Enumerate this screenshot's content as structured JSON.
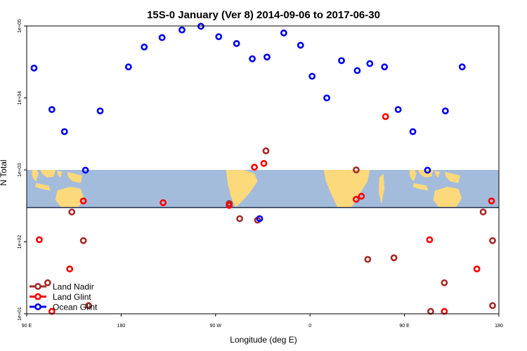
{
  "chart_data": {
    "type": "scatter",
    "title": "15S-0 January (Ver 8)   2014-09-06 to 2017-06-30",
    "xlabel": "Longitude (deg E)",
    "ylabel": "N Total",
    "y_scale": "log",
    "xlim": [
      90,
      540
    ],
    "ylim": [
      10,
      100000
    ],
    "x_ticks": [
      {
        "value": 90,
        "label": "90 E"
      },
      {
        "value": 180,
        "label": "180"
      },
      {
        "value": 270,
        "label": "90 W"
      },
      {
        "value": 360,
        "label": "0"
      },
      {
        "value": 450,
        "label": "90 E"
      },
      {
        "value": 540,
        "label": "180"
      }
    ],
    "y_ticks": [
      {
        "value": 10,
        "label": "1e+01"
      },
      {
        "value": 100,
        "label": "1e+02"
      },
      {
        "value": 1000,
        "label": "1e+03"
      },
      {
        "value": 10000,
        "label": "1e+04"
      },
      {
        "value": 100000,
        "label": "1e+05"
      }
    ],
    "map_band": {
      "lat_range_label": "15S-0",
      "y_range": [
        300,
        1000
      ],
      "ocean_color": "#a4bcdc",
      "land_color": "#fcd97a",
      "border_color": "#1a2a4a"
    },
    "grid": false,
    "legend_position": "bottom-left",
    "series": [
      {
        "name": "Land Nadir",
        "color": "#a52a2a",
        "points": [
          {
            "x": 110,
            "y": 27
          },
          {
            "x": 133,
            "y": 260
          },
          {
            "x": 144,
            "y": 104
          },
          {
            "x": 149,
            "y": 13
          },
          {
            "x": 283,
            "y": 340
          },
          {
            "x": 293,
            "y": 210
          },
          {
            "x": 310,
            "y": 200
          },
          {
            "x": 318,
            "y": 1840
          },
          {
            "x": 404,
            "y": 1000
          },
          {
            "x": 415,
            "y": 57
          },
          {
            "x": 440,
            "y": 60
          },
          {
            "x": 475,
            "y": 10.8
          },
          {
            "x": 488,
            "y": 27
          },
          {
            "x": 525,
            "y": 260
          },
          {
            "x": 540,
            "y": 104
          },
          {
            "x": 548,
            "y": 13
          }
        ]
      },
      {
        "name": "Land Glint",
        "color": "#ff0000",
        "points": [
          {
            "x": 102,
            "y": 107
          },
          {
            "x": 114,
            "y": 10.8
          },
          {
            "x": 131,
            "y": 42
          },
          {
            "x": 144,
            "y": 370
          },
          {
            "x": 220,
            "y": 350
          },
          {
            "x": 283,
            "y": 320
          },
          {
            "x": 307,
            "y": 1090
          },
          {
            "x": 316,
            "y": 1230
          },
          {
            "x": 404,
            "y": 390
          },
          {
            "x": 409,
            "y": 430
          },
          {
            "x": 432,
            "y": 5500
          },
          {
            "x": 474,
            "y": 107
          },
          {
            "x": 488,
            "y": 10.8
          },
          {
            "x": 519,
            "y": 42
          },
          {
            "x": 533,
            "y": 370
          }
        ]
      },
      {
        "name": "Ocean Glint",
        "color": "#0000ee",
        "points": [
          {
            "x": 97,
            "y": 26000
          },
          {
            "x": 114,
            "y": 6900
          },
          {
            "x": 126,
            "y": 3400
          },
          {
            "x": 146,
            "y": 990
          },
          {
            "x": 160,
            "y": 6600
          },
          {
            "x": 187,
            "y": 27000
          },
          {
            "x": 202,
            "y": 51000
          },
          {
            "x": 219,
            "y": 69000
          },
          {
            "x": 238,
            "y": 88000
          },
          {
            "x": 256,
            "y": 99000
          },
          {
            "x": 273,
            "y": 71000
          },
          {
            "x": 290,
            "y": 57000
          },
          {
            "x": 305,
            "y": 35000
          },
          {
            "x": 312,
            "y": 210
          },
          {
            "x": 319,
            "y": 37000
          },
          {
            "x": 335,
            "y": 80000
          },
          {
            "x": 351,
            "y": 54000
          },
          {
            "x": 362,
            "y": 20000
          },
          {
            "x": 376,
            "y": 10000
          },
          {
            "x": 390,
            "y": 33000
          },
          {
            "x": 405,
            "y": 24000
          },
          {
            "x": 417,
            "y": 30000
          },
          {
            "x": 431,
            "y": 27000
          },
          {
            "x": 444,
            "y": 6900
          },
          {
            "x": 458,
            "y": 3400
          },
          {
            "x": 472,
            "y": 990
          },
          {
            "x": 489,
            "y": 6600
          },
          {
            "x": 505,
            "y": 27000
          }
        ]
      }
    ]
  }
}
